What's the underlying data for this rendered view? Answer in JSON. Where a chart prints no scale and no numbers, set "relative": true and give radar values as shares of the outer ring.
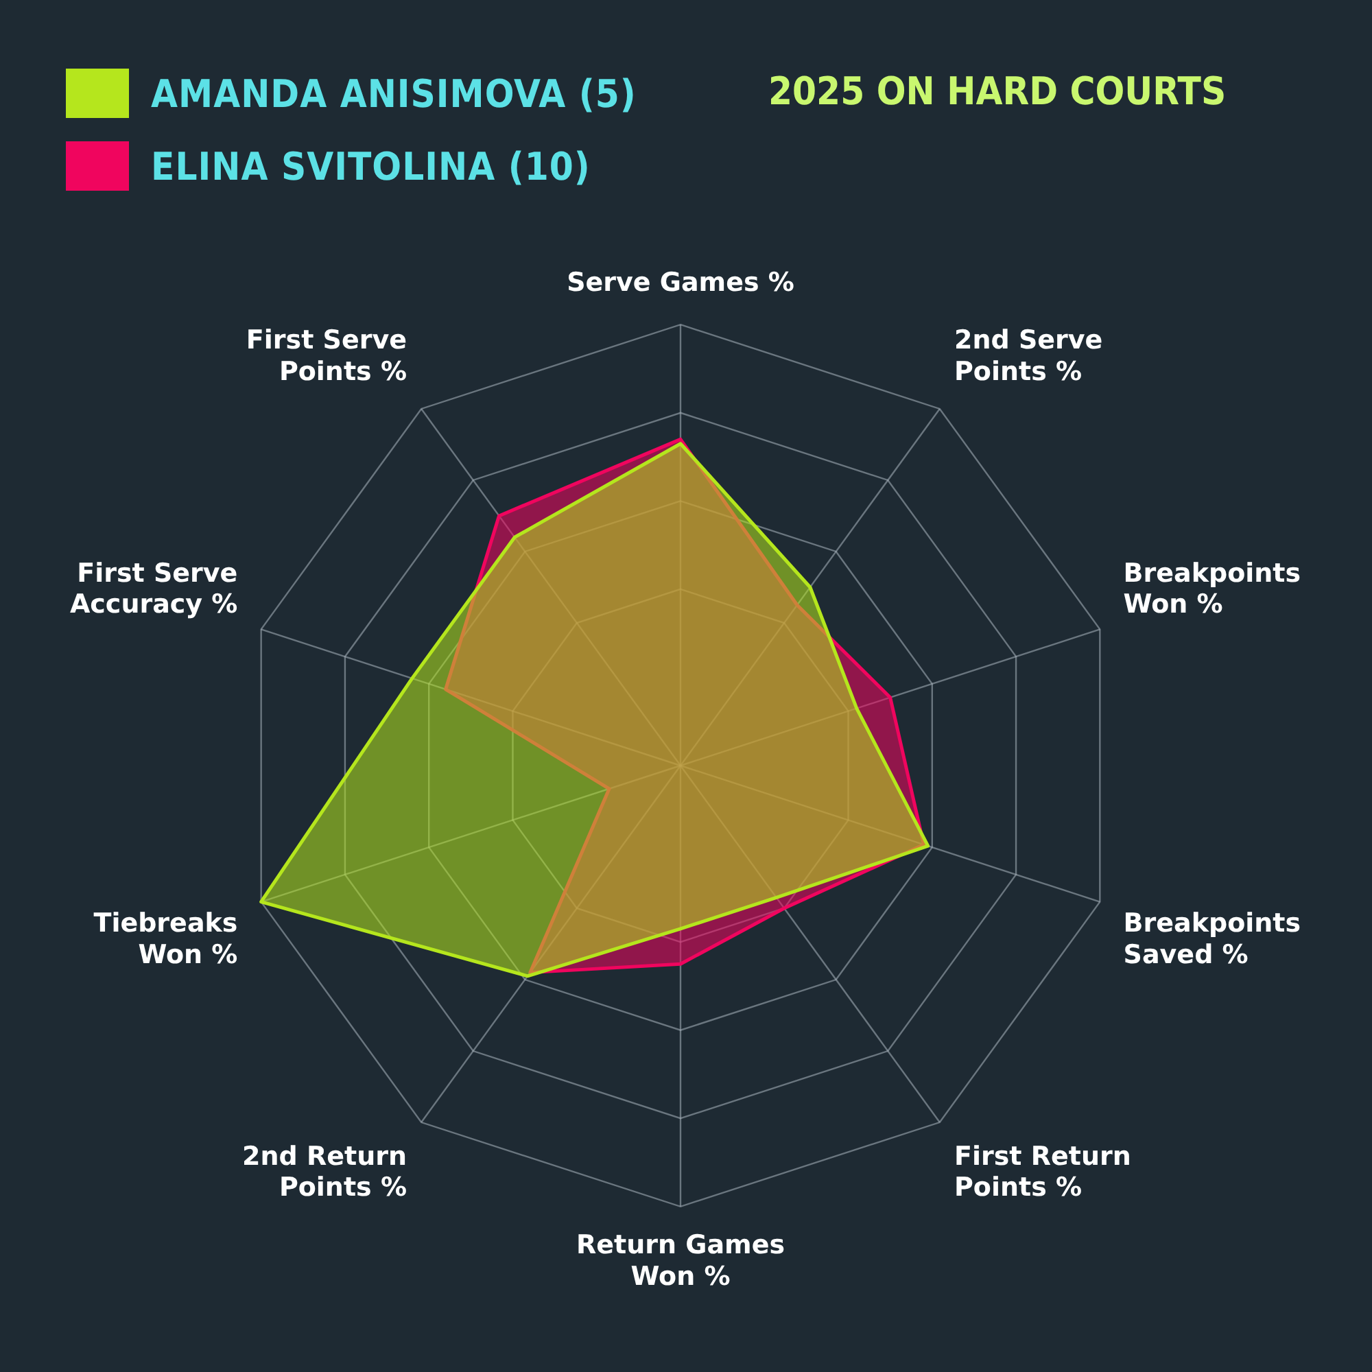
{
  "chart_data": {
    "type": "radar",
    "title": "2025 ON HARD COURTS",
    "relative": true,
    "legend": "top left",
    "grid": true,
    "categories": [
      "Serve Games %",
      "2nd Serve Points %",
      "Breakpoints Won %",
      "Breakpoints Saved %",
      "First Return Points %",
      "Return Games Won %",
      "2nd Return Points %",
      "Tiebreaks Won %",
      "First Serve Accuracy %",
      "First Serve Points %"
    ],
    "series": [
      {
        "name": "AMANDA ANISIMOVA (5)",
        "color": "#b5e61d",
        "values": [
          0.73,
          0.5,
          0.42,
          0.59,
          0.37,
          0.37,
          0.59,
          1.0,
          0.64,
          0.64
        ]
      },
      {
        "name": "ELINA SVITOLINA (10)",
        "color": "#f0055e",
        "values": [
          0.74,
          0.45,
          0.5,
          0.58,
          0.4,
          0.45,
          0.58,
          0.17,
          0.56,
          0.7
        ]
      }
    ]
  }
}
